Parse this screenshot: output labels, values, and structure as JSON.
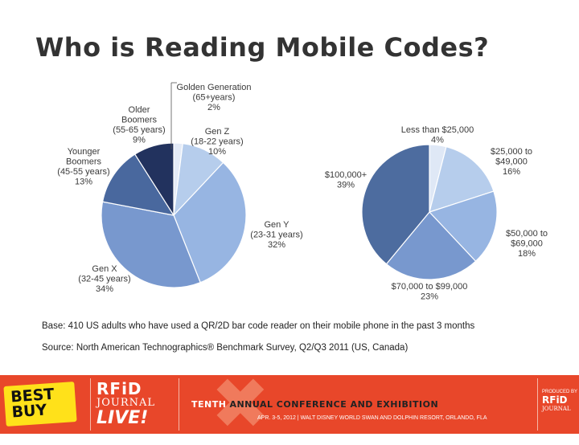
{
  "page": {
    "title": "Who is Reading Mobile Codes?",
    "base_note": "Base: 410 US adults who have used a QR/2D bar code reader on their mobile phone in the past 3 months",
    "source_note": "Source: North American Technographics® Benchmark Survey, Q2/Q3 2011 (US, Canada)"
  },
  "chart_data": [
    {
      "type": "pie",
      "labels": [
        "Golden Generation (65+years)",
        "Gen Z (18-22 years)",
        "Gen Y (23-31 years)",
        "Gen X (32-45 years)",
        "Younger Boomers (45-55 years)",
        "Older Boomers (55-65 years)"
      ],
      "values": [
        2,
        10,
        32,
        34,
        13,
        9
      ],
      "value_labels": [
        "2%",
        "10%",
        "32%",
        "34%",
        "13%",
        "9%"
      ],
      "colors": [
        "#e4ebf7",
        "#b6cdec",
        "#97b5e2",
        "#7898ce",
        "#49689e",
        "#22325e"
      ],
      "label_lines": [
        [
          "Golden Generation",
          "(65+years)",
          "2%"
        ],
        [
          "Gen Z",
          "(18-22 years)",
          "10%"
        ],
        [
          "Gen Y",
          "(23-31 years)",
          "32%"
        ],
        [
          "Gen X",
          "(32-45 years)",
          "34%"
        ],
        [
          "Younger",
          "Boomers",
          "(45-55 years)",
          "13%"
        ],
        [
          "Older",
          "Boomers",
          "(55-65 years)",
          "9%"
        ]
      ]
    },
    {
      "type": "pie",
      "labels": [
        "Less than $25,000",
        "$25,000 to $49,000",
        "$50,000 to $69,000",
        "$70,000 to $99,000",
        "$100,000+"
      ],
      "values": [
        4,
        16,
        18,
        23,
        39
      ],
      "value_labels": [
        "4%",
        "16%",
        "18%",
        "23%",
        "39%"
      ],
      "colors": [
        "#dfe8f6",
        "#b6cdec",
        "#97b5e2",
        "#7898ce",
        "#4d6c9f"
      ],
      "label_lines": [
        [
          "Less than $25,000",
          "4%"
        ],
        [
          "$25,000 to",
          "$49,000",
          "16%"
        ],
        [
          "$50,000 to",
          "$69,000",
          "18%"
        ],
        [
          "$70,000 to $99,000",
          "23%"
        ],
        [
          "$100,000+",
          "39%"
        ]
      ]
    }
  ],
  "banner": {
    "bestbuy_text": "BEST BUY",
    "rfid_title": "RFiD",
    "rfid_journal": "JOURNAL",
    "rfid_live": "LIVE!",
    "tenth": "TENTH",
    "conference": "ANNUAL CONFERENCE AND EXHIBITION",
    "dates": "APR. 3-5, 2012 | WALT DISNEY WORLD SWAN AND DOLPHIN RESORT, ORLANDO, FLA",
    "produced_by": "PRODUCED BY",
    "produced_rfid": "RFiD",
    "produced_journal": "JOURNAL"
  }
}
